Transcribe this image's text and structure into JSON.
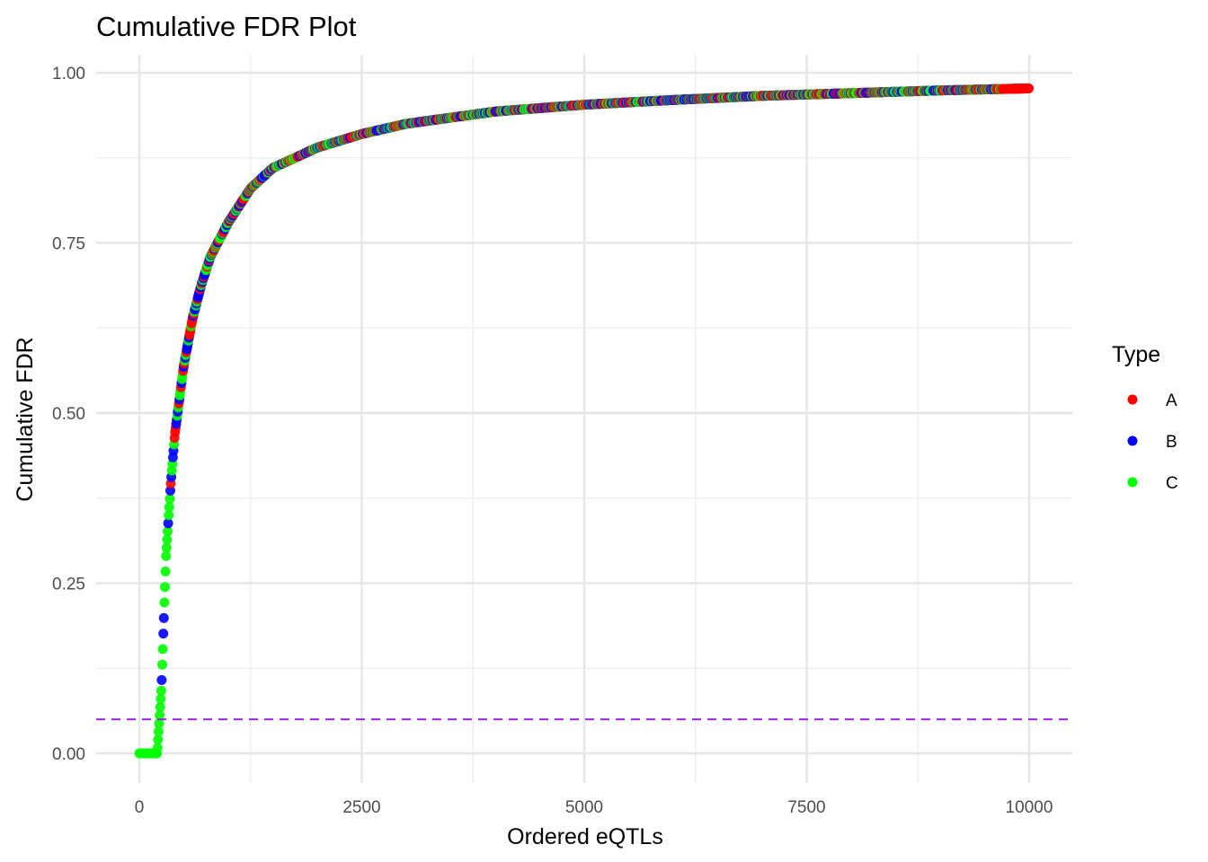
{
  "chart_data": {
    "type": "scatter",
    "title": "Cumulative FDR Plot",
    "xlabel": "Ordered eQTLs",
    "ylabel": "Cumulative FDR",
    "xlim": [
      -250,
      10250
    ],
    "ylim": [
      -0.047,
      1.03
    ],
    "x_ticks": [
      0,
      2500,
      5000,
      7500,
      10000
    ],
    "x_tick_labels": [
      "0",
      "2500",
      "5000",
      "7500",
      "10000"
    ],
    "y_ticks": [
      0,
      0.25,
      0.5,
      0.75,
      1.0
    ],
    "y_tick_labels": [
      "0.00",
      "0.25",
      "0.50",
      "0.75",
      "1.00"
    ],
    "grid": true,
    "threshold_line": {
      "y": 0.05,
      "color": "#a020f0",
      "style": "dashed"
    },
    "legend": {
      "title": "Type",
      "position": "right",
      "entries": [
        {
          "name": "A",
          "color": "#ff0000"
        },
        {
          "name": "B",
          "color": "#0000ff"
        },
        {
          "name": "C",
          "color": "#00ff00"
        }
      ]
    },
    "n_points": 10000,
    "curve_points": [
      [
        0,
        0.0
      ],
      [
        200,
        0.0
      ],
      [
        250,
        0.1
      ],
      [
        300,
        0.29
      ],
      [
        350,
        0.39
      ],
      [
        400,
        0.47
      ],
      [
        500,
        0.57
      ],
      [
        600,
        0.64
      ],
      [
        700,
        0.69
      ],
      [
        800,
        0.73
      ],
      [
        1000,
        0.78
      ],
      [
        1250,
        0.83
      ],
      [
        1500,
        0.86
      ],
      [
        2000,
        0.89
      ],
      [
        2500,
        0.91
      ],
      [
        3000,
        0.925
      ],
      [
        4000,
        0.943
      ],
      [
        5000,
        0.953
      ],
      [
        6000,
        0.96
      ],
      [
        7000,
        0.966
      ],
      [
        8000,
        0.97
      ],
      [
        9000,
        0.974
      ],
      [
        10000,
        0.977
      ]
    ],
    "series_notes": {
      "C": "dominant in low-rank region (x < ~350)",
      "A": "dominant at high ranks",
      "B": "interspersed"
    }
  }
}
